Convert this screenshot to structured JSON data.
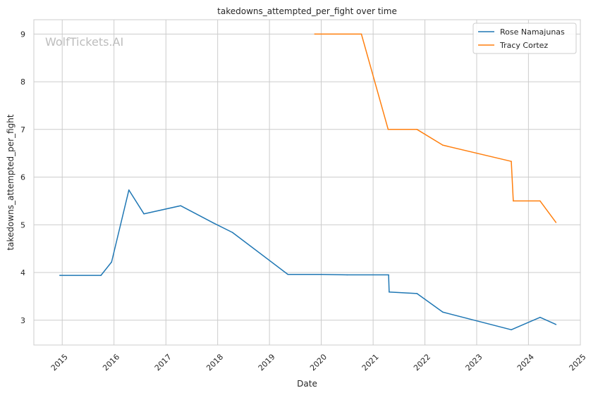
{
  "watermark": "WolfTickets.AI",
  "chart_data": {
    "type": "line",
    "title": "takedowns_attempted_per_fight over time",
    "xlabel": "Date",
    "ylabel": "takedowns_attempted_per_fight",
    "x_axis_type": "date",
    "xlim": [
      "2014-06-15",
      "2025-01-01"
    ],
    "ylim": [
      2.48,
      9.3
    ],
    "x_ticks": [
      "2015",
      "2016",
      "2017",
      "2018",
      "2019",
      "2020",
      "2021",
      "2022",
      "2023",
      "2024",
      "2025"
    ],
    "y_ticks": [
      3,
      4,
      5,
      6,
      7,
      8,
      9
    ],
    "grid": true,
    "legend_position": "top-right",
    "series": [
      {
        "name": "Rose Namajunas",
        "color": "#1f77b4",
        "points": [
          {
            "x": "2014-12-15",
            "y": 3.94
          },
          {
            "x": "2015-10-01",
            "y": 3.94
          },
          {
            "x": "2015-12-15",
            "y": 4.22
          },
          {
            "x": "2016-04-15",
            "y": 5.73
          },
          {
            "x": "2016-07-30",
            "y": 5.23
          },
          {
            "x": "2017-04-15",
            "y": 5.4
          },
          {
            "x": "2017-12-01",
            "y": 5.04
          },
          {
            "x": "2018-04-15",
            "y": 4.84
          },
          {
            "x": "2019-05-11",
            "y": 3.96
          },
          {
            "x": "2020-01-01",
            "y": 3.96
          },
          {
            "x": "2020-07-01",
            "y": 3.95
          },
          {
            "x": "2021-04-20",
            "y": 3.95
          },
          {
            "x": "2021-04-24",
            "y": 3.59
          },
          {
            "x": "2021-11-06",
            "y": 3.56
          },
          {
            "x": "2022-05-07",
            "y": 3.17
          },
          {
            "x": "2023-09-02",
            "y": 2.8
          },
          {
            "x": "2024-03-23",
            "y": 3.06
          },
          {
            "x": "2024-07-13",
            "y": 2.91
          }
        ]
      },
      {
        "name": "Tracy Cortez",
        "color": "#ff7f0e",
        "points": [
          {
            "x": "2019-11-16",
            "y": 9.0
          },
          {
            "x": "2020-10-10",
            "y": 9.0
          },
          {
            "x": "2021-04-17",
            "y": 7.0
          },
          {
            "x": "2021-11-06",
            "y": 7.0
          },
          {
            "x": "2022-05-07",
            "y": 6.67
          },
          {
            "x": "2023-09-02",
            "y": 6.33
          },
          {
            "x": "2023-09-16",
            "y": 5.5
          },
          {
            "x": "2024-03-23",
            "y": 5.5
          },
          {
            "x": "2024-07-13",
            "y": 5.05
          }
        ]
      }
    ]
  }
}
